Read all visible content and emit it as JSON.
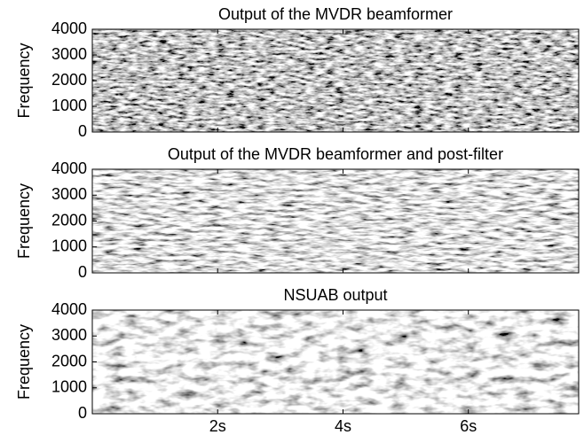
{
  "chart_data": [
    {
      "type": "spectrogram",
      "title": "Output of the MVDR beamformer",
      "y_label": "Frequency",
      "xlim": [
        0,
        7.76
      ],
      "xticks": [
        2,
        4,
        6
      ],
      "ylim": [
        0,
        4000
      ],
      "yticks": [
        0,
        1000,
        2000,
        3000,
        4000
      ]
    },
    {
      "type": "spectrogram",
      "title": "Output of the MVDR beamformer and post-filter",
      "y_label": "Frequency",
      "xlim": [
        0,
        7.76
      ],
      "xticks": [
        2,
        4,
        6
      ],
      "ylim": [
        0,
        4000
      ],
      "yticks": [
        0,
        1000,
        2000,
        3000,
        4000
      ]
    },
    {
      "type": "spectrogram",
      "title": "NSUAB output",
      "y_label": "Frequency",
      "xlim": [
        0,
        7.76
      ],
      "xticks": [
        {
          "value": 2,
          "label": "2s"
        },
        {
          "value": 4,
          "label": "4s"
        },
        {
          "value": 6,
          "label": "6s"
        }
      ],
      "ylim": [
        0,
        4000
      ],
      "yticks": [
        0,
        1000,
        2000,
        3000,
        4000
      ]
    }
  ]
}
